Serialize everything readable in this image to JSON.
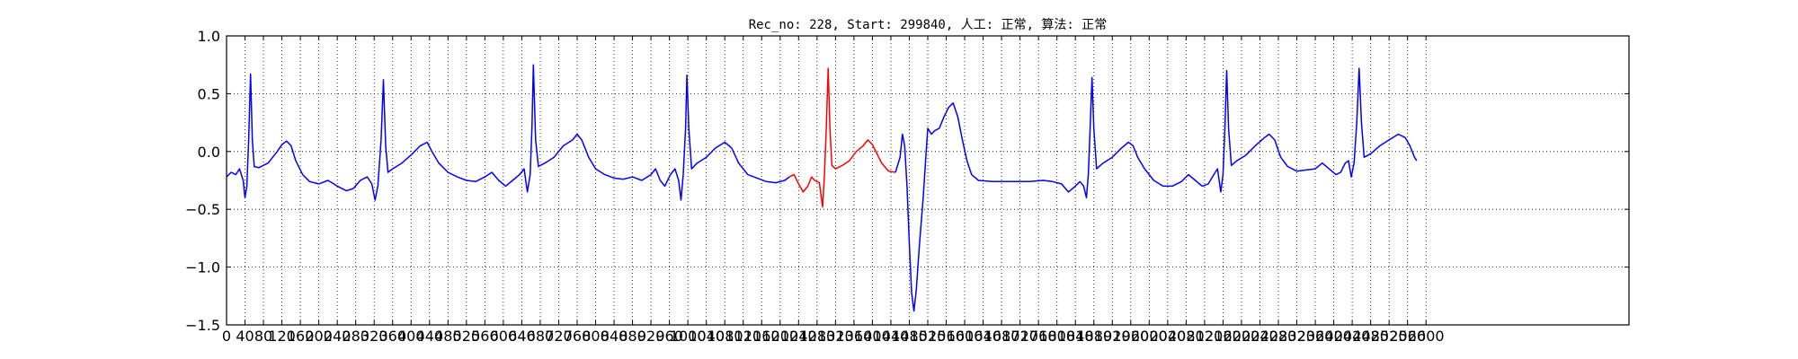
{
  "chart_data": {
    "type": "line",
    "title": "Rec_no: 228, Start: 299840, 人工: 正常, 算法: 正常",
    "xlabel": "",
    "ylabel": "",
    "xlim": [
      0,
      3040
    ],
    "ylim": [
      -1.5,
      1.0
    ],
    "grid": true,
    "grid_style": "dotted",
    "x_ticks": [
      0,
      40,
      80,
      120,
      160,
      200,
      240,
      280,
      320,
      360,
      400,
      440,
      480,
      520,
      560,
      600,
      640,
      680,
      720,
      760,
      800,
      840,
      880,
      920,
      960,
      1000,
      1040,
      1080,
      1120,
      1160,
      1200,
      1240,
      1280,
      1320,
      1360,
      1400,
      1440,
      1480,
      1520,
      1560,
      1600,
      1640,
      1680,
      1720,
      1760,
      1800,
      1840,
      1880,
      1920,
      1960,
      2000,
      2040,
      2080,
      2120,
      2160,
      2200,
      2240,
      2280,
      2320,
      2360,
      2400,
      2440,
      2480,
      2520,
      2560,
      2600
    ],
    "x_tick_labels": [
      "0",
      "40",
      "80",
      "120",
      "160",
      "200",
      "240",
      "280",
      "320",
      "360",
      "400",
      "440",
      "480",
      "520",
      "560",
      "600",
      "640",
      "680",
      "720",
      "760",
      "800",
      "840",
      "880",
      "920",
      "960",
      "1000",
      "1040",
      "1080",
      "1120",
      "1160",
      "1200",
      "1240",
      "1280",
      "1320",
      "1360",
      "1400",
      "1440",
      "1480",
      "1520",
      "1560",
      "1600",
      "1640",
      "1680",
      "1720",
      "1760",
      "1800",
      "1840",
      "1880",
      "1920",
      "1960",
      "2000",
      "2040",
      "2080",
      "2120",
      "2160",
      "2200",
      "2240",
      "2280",
      "2320",
      "2360",
      "2400",
      "2440",
      "2480",
      "2520",
      "2560",
      "2600"
    ],
    "y_ticks": [
      1.0,
      0.5,
      0.0,
      -0.5,
      -1.0,
      -1.5
    ],
    "y_tick_labels": [
      "1.0",
      "0.5",
      "0.0",
      "−0.5",
      "−1.0",
      "−1.5"
    ],
    "series": [
      {
        "color": "#0000ff",
        "points": [
          [
            0,
            -0.22
          ],
          [
            10,
            -0.18
          ],
          [
            20,
            -0.2
          ],
          [
            28,
            -0.15
          ],
          [
            36,
            -0.25
          ],
          [
            40,
            -0.4
          ],
          [
            44,
            -0.3
          ],
          [
            48,
            0.1
          ],
          [
            52,
            0.67
          ],
          [
            56,
            0.1
          ],
          [
            60,
            -0.13
          ],
          [
            70,
            -0.14
          ],
          [
            90,
            -0.1
          ],
          [
            110,
            0.0
          ],
          [
            120,
            0.06
          ],
          [
            130,
            0.09
          ],
          [
            140,
            0.05
          ],
          [
            150,
            -0.08
          ],
          [
            165,
            -0.2
          ],
          [
            180,
            -0.26
          ],
          [
            200,
            -0.28
          ],
          [
            220,
            -0.25
          ],
          [
            240,
            -0.3
          ],
          [
            260,
            -0.34
          ],
          [
            275,
            -0.32
          ],
          [
            290,
            -0.25
          ],
          [
            305,
            -0.22
          ],
          [
            315,
            -0.28
          ],
          [
            322,
            -0.42
          ],
          [
            328,
            -0.3
          ],
          [
            335,
            0.1
          ],
          [
            340,
            0.62
          ],
          [
            345,
            0.05
          ],
          [
            350,
            -0.18
          ],
          [
            360,
            -0.15
          ],
          [
            380,
            -0.1
          ],
          [
            400,
            -0.03
          ],
          [
            420,
            0.05
          ],
          [
            435,
            0.08
          ],
          [
            445,
            0.0
          ],
          [
            460,
            -0.1
          ],
          [
            480,
            -0.18
          ],
          [
            500,
            -0.22
          ],
          [
            520,
            -0.25
          ],
          [
            540,
            -0.26
          ],
          [
            560,
            -0.22
          ],
          [
            575,
            -0.18
          ],
          [
            590,
            -0.25
          ],
          [
            605,
            -0.3
          ],
          [
            620,
            -0.25
          ],
          [
            635,
            -0.2
          ],
          [
            645,
            -0.15
          ],
          [
            652,
            -0.35
          ],
          [
            658,
            -0.2
          ],
          [
            662,
            0.2
          ],
          [
            665,
            0.75
          ],
          [
            670,
            0.1
          ],
          [
            676,
            -0.13
          ],
          [
            690,
            -0.1
          ],
          [
            710,
            -0.05
          ],
          [
            730,
            0.05
          ],
          [
            750,
            0.1
          ],
          [
            760,
            0.15
          ],
          [
            770,
            0.1
          ],
          [
            785,
            -0.05
          ],
          [
            800,
            -0.15
          ],
          [
            820,
            -0.2
          ],
          [
            840,
            -0.23
          ],
          [
            860,
            -0.24
          ],
          [
            880,
            -0.22
          ],
          [
            900,
            -0.25
          ],
          [
            920,
            -0.2
          ],
          [
            930,
            -0.15
          ],
          [
            940,
            -0.25
          ],
          [
            950,
            -0.3
          ],
          [
            962,
            -0.2
          ],
          [
            972,
            -0.15
          ],
          [
            980,
            -0.25
          ],
          [
            985,
            -0.42
          ],
          [
            990,
            -0.2
          ],
          [
            995,
            0.2
          ],
          [
            998,
            0.66
          ],
          [
            1002,
            0.2
          ],
          [
            1008,
            -0.15
          ],
          [
            1020,
            -0.1
          ],
          [
            1040,
            -0.05
          ],
          [
            1060,
            0.03
          ],
          [
            1080,
            0.08
          ],
          [
            1095,
            0.03
          ],
          [
            1110,
            -0.1
          ],
          [
            1130,
            -0.2
          ],
          [
            1150,
            -0.23
          ],
          [
            1170,
            -0.26
          ],
          [
            1190,
            -0.27
          ],
          [
            1210,
            -0.25
          ],
          [
            1220,
            -0.22
          ]
        ]
      },
      {
        "color": "#ff0000",
        "points": [
          [
            1220,
            -0.22
          ],
          [
            1230,
            -0.2
          ],
          [
            1240,
            -0.28
          ],
          [
            1250,
            -0.35
          ],
          [
            1260,
            -0.3
          ],
          [
            1268,
            -0.22
          ],
          [
            1275,
            -0.25
          ],
          [
            1285,
            -0.27
          ],
          [
            1292,
            -0.48
          ],
          [
            1296,
            -0.2
          ],
          [
            1300,
            0.2
          ],
          [
            1304,
            0.72
          ],
          [
            1308,
            0.2
          ],
          [
            1312,
            -0.12
          ],
          [
            1320,
            -0.15
          ],
          [
            1335,
            -0.12
          ],
          [
            1350,
            -0.08
          ],
          [
            1365,
            0.0
          ],
          [
            1380,
            0.05
          ],
          [
            1390,
            0.1
          ],
          [
            1400,
            0.06
          ],
          [
            1410,
            -0.02
          ],
          [
            1420,
            -0.1
          ],
          [
            1435,
            -0.17
          ],
          [
            1450,
            -0.18
          ]
        ]
      },
      {
        "color": "#0000ff",
        "points": [
          [
            1450,
            -0.18
          ],
          [
            1460,
            -0.05
          ],
          [
            1465,
            0.15
          ],
          [
            1470,
            0.05
          ],
          [
            1475,
            -0.3
          ],
          [
            1480,
            -0.8
          ],
          [
            1485,
            -1.22
          ],
          [
            1490,
            -1.38
          ],
          [
            1495,
            -1.2
          ],
          [
            1502,
            -0.8
          ],
          [
            1510,
            -0.4
          ],
          [
            1515,
            -0.1
          ],
          [
            1520,
            0.2
          ],
          [
            1528,
            0.15
          ],
          [
            1535,
            0.18
          ],
          [
            1545,
            0.2
          ],
          [
            1555,
            0.3
          ],
          [
            1565,
            0.38
          ],
          [
            1575,
            0.42
          ],
          [
            1585,
            0.3
          ],
          [
            1595,
            0.1
          ],
          [
            1605,
            -0.08
          ],
          [
            1615,
            -0.2
          ],
          [
            1630,
            -0.25
          ],
          [
            1660,
            -0.26
          ],
          [
            1700,
            -0.26
          ],
          [
            1740,
            -0.26
          ],
          [
            1770,
            -0.25
          ],
          [
            1790,
            -0.26
          ],
          [
            1810,
            -0.28
          ],
          [
            1825,
            -0.35
          ],
          [
            1840,
            -0.3
          ],
          [
            1850,
            -0.26
          ],
          [
            1858,
            -0.3
          ],
          [
            1864,
            -0.4
          ],
          [
            1868,
            -0.2
          ],
          [
            1872,
            0.2
          ],
          [
            1876,
            0.64
          ],
          [
            1880,
            0.2
          ],
          [
            1886,
            -0.15
          ],
          [
            1900,
            -0.1
          ],
          [
            1920,
            -0.05
          ],
          [
            1940,
            0.03
          ],
          [
            1955,
            0.08
          ],
          [
            1965,
            0.05
          ],
          [
            1975,
            -0.05
          ],
          [
            1990,
            -0.15
          ],
          [
            2010,
            -0.25
          ],
          [
            2030,
            -0.3
          ],
          [
            2050,
            -0.3
          ],
          [
            2070,
            -0.26
          ],
          [
            2085,
            -0.2
          ],
          [
            2100,
            -0.25
          ],
          [
            2115,
            -0.3
          ],
          [
            2128,
            -0.28
          ],
          [
            2140,
            -0.2
          ],
          [
            2148,
            -0.15
          ],
          [
            2155,
            -0.35
          ],
          [
            2160,
            -0.2
          ],
          [
            2164,
            0.2
          ],
          [
            2168,
            0.7
          ],
          [
            2172,
            0.2
          ],
          [
            2178,
            -0.12
          ],
          [
            2190,
            -0.08
          ],
          [
            2210,
            -0.03
          ],
          [
            2230,
            0.05
          ],
          [
            2250,
            0.12
          ],
          [
            2260,
            0.15
          ],
          [
            2272,
            0.1
          ],
          [
            2285,
            -0.05
          ],
          [
            2300,
            -0.13
          ],
          [
            2320,
            -0.17
          ],
          [
            2340,
            -0.16
          ],
          [
            2360,
            -0.15
          ],
          [
            2375,
            -0.1
          ],
          [
            2390,
            -0.15
          ],
          [
            2405,
            -0.2
          ],
          [
            2415,
            -0.18
          ],
          [
            2425,
            -0.1
          ],
          [
            2432,
            -0.08
          ],
          [
            2438,
            -0.22
          ],
          [
            2444,
            -0.1
          ],
          [
            2450,
            0.25
          ],
          [
            2455,
            0.72
          ],
          [
            2460,
            0.25
          ],
          [
            2466,
            -0.05
          ],
          [
            2480,
            -0.02
          ],
          [
            2500,
            0.05
          ],
          [
            2520,
            0.1
          ],
          [
            2540,
            0.15
          ],
          [
            2555,
            0.12
          ],
          [
            2565,
            0.05
          ],
          [
            2575,
            -0.05
          ],
          [
            2580,
            -0.08
          ]
        ]
      }
    ]
  }
}
